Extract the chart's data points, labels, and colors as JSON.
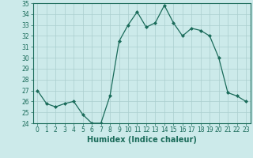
{
  "x": [
    0,
    1,
    2,
    3,
    4,
    5,
    6,
    7,
    8,
    9,
    10,
    11,
    12,
    13,
    14,
    15,
    16,
    17,
    18,
    19,
    20,
    21,
    22,
    23
  ],
  "y": [
    27.0,
    25.8,
    25.5,
    25.8,
    26.0,
    24.8,
    24.0,
    24.0,
    26.5,
    31.5,
    33.0,
    34.2,
    32.8,
    33.2,
    34.8,
    33.2,
    32.0,
    32.7,
    32.5,
    32.0,
    30.0,
    26.8,
    26.5,
    26.0
  ],
  "line_color": "#1a6b5a",
  "marker": "D",
  "marker_size": 2,
  "bg_color": "#cceaea",
  "grid_color": "#aacece",
  "xlabel": "Humidex (Indice chaleur)",
  "ylim": [
    24,
    35
  ],
  "xlim": [
    -0.5,
    23.5
  ],
  "yticks": [
    24,
    25,
    26,
    27,
    28,
    29,
    30,
    31,
    32,
    33,
    34,
    35
  ],
  "xticks": [
    0,
    1,
    2,
    3,
    4,
    5,
    6,
    7,
    8,
    9,
    10,
    11,
    12,
    13,
    14,
    15,
    16,
    17,
    18,
    19,
    20,
    21,
    22,
    23
  ],
  "tick_fontsize": 5.5,
  "label_fontsize": 7.0
}
